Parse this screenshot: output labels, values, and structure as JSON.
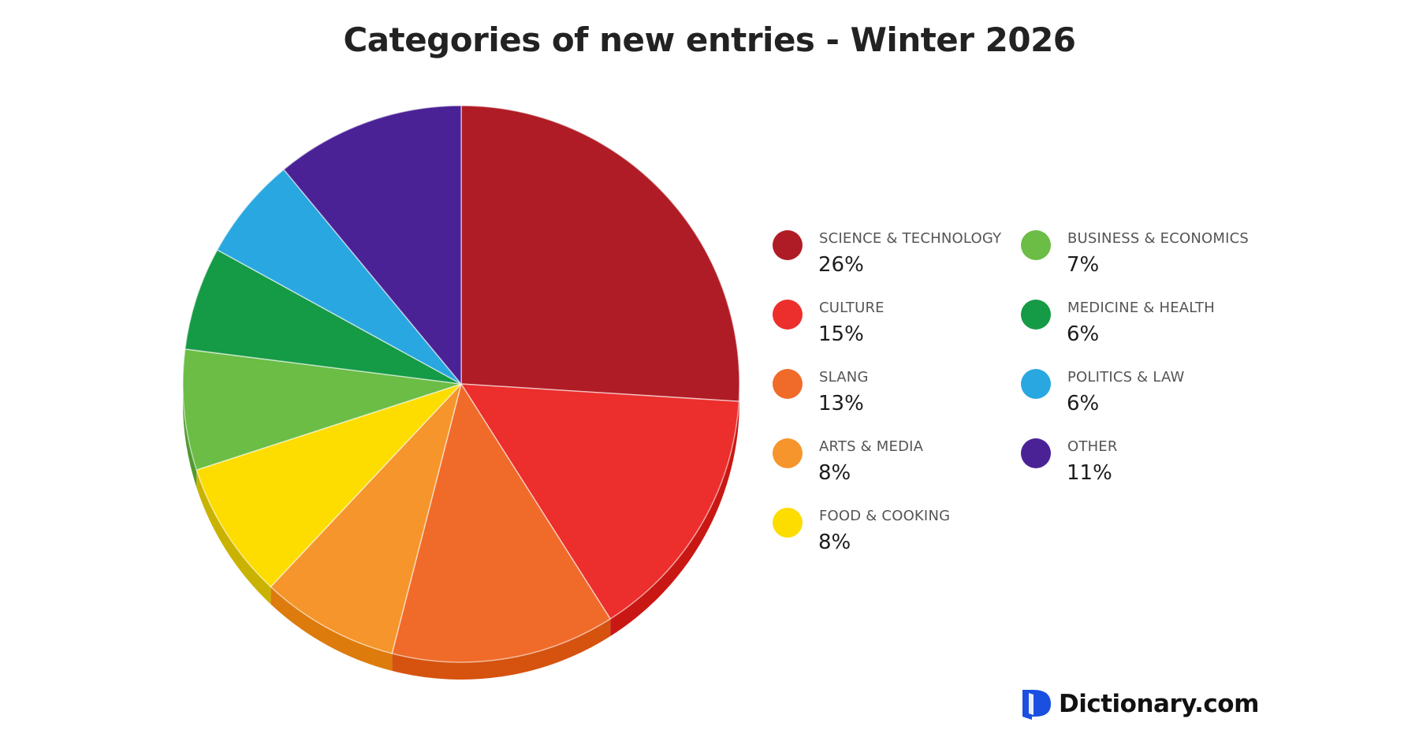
{
  "title": "Categories of new entries - Winter 2026",
  "brand": {
    "name": "Dictionary.com",
    "icon": "dictionary-logo-icon",
    "color": "#1a4fe0"
  },
  "legend": {
    "items": [
      {
        "label": "SCIENCE & TECHNOLOGY",
        "value": "26%",
        "color": "#b01c25",
        "col": 0,
        "row": 0
      },
      {
        "label": "CULTURE",
        "value": "15%",
        "color": "#ec2e2c",
        "col": 0,
        "row": 1
      },
      {
        "label": "SLANG",
        "value": "13%",
        "color": "#f06b29",
        "col": 0,
        "row": 2
      },
      {
        "label": "ARTS & MEDIA",
        "value": "8%",
        "color": "#f5952b",
        "col": 0,
        "row": 3
      },
      {
        "label": "FOOD & COOKING",
        "value": "8%",
        "color": "#fddc00",
        "col": 0,
        "row": 4
      },
      {
        "label": "BUSINESS & ECONOMICS",
        "value": "7%",
        "color": "#6bbd45",
        "col": 1,
        "row": 0
      },
      {
        "label": "MEDICINE & HEALTH",
        "value": "6%",
        "color": "#159a45",
        "col": 1,
        "row": 1
      },
      {
        "label": "POLITICS & LAW",
        "value": "6%",
        "color": "#29a7e0",
        "col": 1,
        "row": 2
      },
      {
        "label": "OTHER",
        "value": "11%",
        "color": "#4a2296",
        "col": 1,
        "row": 3
      }
    ]
  },
  "chart_data": {
    "type": "pie",
    "title": "Categories of new entries - Winter 2026",
    "categories": [
      "SCIENCE & TECHNOLOGY",
      "CULTURE",
      "SLANG",
      "ARTS & MEDIA",
      "FOOD & COOKING",
      "BUSINESS & ECONOMICS",
      "MEDICINE & HEALTH",
      "POLITICS & LAW",
      "OTHER"
    ],
    "values": [
      26,
      15,
      13,
      8,
      8,
      7,
      6,
      6,
      11
    ],
    "unit": "%",
    "colors": [
      "#b01c25",
      "#ec2e2c",
      "#f06b29",
      "#f5952b",
      "#fddc00",
      "#6bbd45",
      "#159a45",
      "#29a7e0",
      "#4a2296"
    ],
    "edge_colors": [
      "#8c141b",
      "#c91814",
      "#d5530f",
      "#dd7b0c",
      "#c9b300",
      "#4f9a2e",
      "#0f7a35",
      "#1a86b8",
      "#33156e"
    ],
    "start_angle_deg": 0,
    "direction": "clockwise",
    "legend_position": "right",
    "style": "3d-tilted"
  }
}
